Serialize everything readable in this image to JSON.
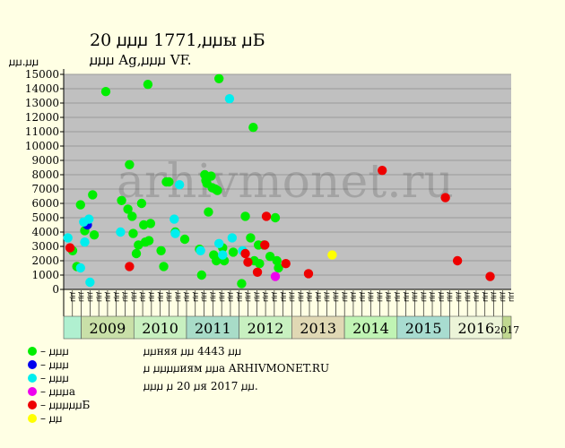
{
  "chart_data": {
    "type": "scatter",
    "title": "20 ꙡꙡꙡ 1771,ꙡꙡы ꙡБ",
    "subtitle": "ꙡꙡꙡ Ag,ꙡꙡꙡ VF.",
    "ylabel": "ꙡꙡ.ꙡꙡ",
    "ylim": [
      0,
      15000
    ],
    "yticks": [
      0,
      1000,
      2000,
      3000,
      4000,
      5000,
      6000,
      7000,
      8000,
      9000,
      10000,
      11000,
      12000,
      13000,
      14000,
      15000
    ],
    "watermark": "arhivmonet.ru",
    "x_slot_labels": [
      "ꙡꙡ",
      "ꙡꙡ",
      "ꙡꙡ",
      "ꙡꙡ",
      "ꙡꙡ",
      "ꙡꙡ",
      "ꙡꙡ",
      "ꙡꙡ",
      "ꙡꙡ",
      "ꙡꙡ",
      "ꙡꙡ",
      "ꙡꙡ",
      "ꙡꙡ",
      "ꙡꙡ",
      "ꙡꙡ",
      "ꙡꙡ",
      "ꙡꙡ",
      "ꙡꙡ",
      "ꙡꙡ",
      "ꙡꙡ",
      "ꙡꙡ",
      "ꙡꙡ",
      "ꙡꙡ",
      "ꙡꙡ",
      "ꙡꙡ",
      "ꙡꙡ",
      "ꙡꙡ",
      "ꙡꙡ",
      "ꙡꙡ",
      "ꙡꙡ",
      "ꙡꙡ",
      "ꙡꙡ",
      "ꙡꙡ",
      "ꙡꙡ",
      "ꙡꙡ",
      "ꙡꙡ",
      "ꙡꙡ",
      "ꙡꙡ",
      "ꙡꙡ",
      "ꙡꙡ",
      "ꙡꙡ",
      "ꙡꙡ",
      "ꙡꙡ",
      "ꙡꙡ",
      "ꙡꙡ",
      "ꙡꙡ",
      "ꙡꙡ",
      "ꙡꙡ",
      "ꙡꙡ",
      "ꙡꙡ",
      "ꙡꙡ",
      "ꙡꙡ",
      "ꙡꙡ",
      "ꙡꙡ",
      "ꙡꙡ",
      "ꙡꙡ",
      "ꙡꙡ",
      "ꙡꙡ",
      "ꙡꙡ",
      "ꙡꙡ",
      "ꙡꙡ",
      "ꙡꙡ",
      "ꙡꙡ",
      "ꙡꙡ",
      "ꙡꙡ",
      "ꙡꙡ",
      "ꙡꙡ",
      "ꙡꙡ",
      "ꙡꙡ",
      "ꙡꙡ",
      "ꙡꙡ",
      "ꙡꙡ",
      "ꙡꙡ",
      "ꙡꙡ",
      "ꙡꙡ",
      "ꙡꙡ",
      "ꙡꙡ",
      "ꙡꙡ",
      "ꙡꙡ",
      "ꙡꙡ",
      "ꙡꙡ",
      "ꙡꙡ",
      "ꙡꙡ",
      "ꙡꙡ",
      "ꙡꙡ",
      "ꙡꙡ",
      "ꙡꙡ",
      "ꙡꙡ",
      "ꙡꙡ",
      "ꙡꙡ",
      "ꙡꙡ",
      "ꙡꙡ",
      "ꙡꙡ",
      "ꙡꙡ",
      "ꙡꙡ",
      "ꙡꙡ"
    ],
    "x_slot_start": 2008.5,
    "x_slot_step": 0.1667,
    "year_bands": [
      {
        "label": "",
        "from": 2008.5,
        "to": 2008.8333,
        "color": "#b0f0d0"
      },
      {
        "label": "2009",
        "from": 2008.8333,
        "to": 2009.8333,
        "color": "#c9e0a8"
      },
      {
        "label": "2010",
        "from": 2009.8333,
        "to": 2010.8333,
        "color": "#c8f0c0"
      },
      {
        "label": "2011",
        "from": 2010.8333,
        "to": 2011.8333,
        "color": "#a8dcc8"
      },
      {
        "label": "2012",
        "from": 2011.8333,
        "to": 2012.8333,
        "color": "#c8f0c0"
      },
      {
        "label": "2013",
        "from": 2012.8333,
        "to": 2013.8333,
        "color": "#e0d8b4"
      },
      {
        "label": "2014",
        "from": 2013.8333,
        "to": 2014.8333,
        "color": "#c0f4b4"
      },
      {
        "label": "2015",
        "from": 2014.8333,
        "to": 2015.8333,
        "color": "#a8dcd0"
      },
      {
        "label": "2016",
        "from": 2015.8333,
        "to": 2016.8333,
        "color": "#ecf4d8"
      },
      {
        "label": "2017",
        "from": 2016.8333,
        "to": 2017.0,
        "color": "#c0d890"
      }
    ],
    "x_range": [
      2008.5,
      2017.0
    ],
    "series": [
      {
        "name": "– ꙡꙡꙡ",
        "color": "#00ee00",
        "points": [
          [
            2008.67,
            2700
          ],
          [
            2008.75,
            1600
          ],
          [
            2008.82,
            5900
          ],
          [
            2008.9,
            4100
          ],
          [
            2009.05,
            6600
          ],
          [
            2009.08,
            3800
          ],
          [
            2009.3,
            13800
          ],
          [
            2009.6,
            6200
          ],
          [
            2009.72,
            5600
          ],
          [
            2009.75,
            8700
          ],
          [
            2009.8,
            5100
          ],
          [
            2009.82,
            3900
          ],
          [
            2009.88,
            2500
          ],
          [
            2009.92,
            3100
          ],
          [
            2009.98,
            6000
          ],
          [
            2010.02,
            4500
          ],
          [
            2010.05,
            3300
          ],
          [
            2010.1,
            14300
          ],
          [
            2010.12,
            3400
          ],
          [
            2010.15,
            4600
          ],
          [
            2010.35,
            2700
          ],
          [
            2010.4,
            1600
          ],
          [
            2010.45,
            7500
          ],
          [
            2010.5,
            7500
          ],
          [
            2010.62,
            4000
          ],
          [
            2010.8,
            3500
          ],
          [
            2011.08,
            2800
          ],
          [
            2011.12,
            1000
          ],
          [
            2011.18,
            8000
          ],
          [
            2011.2,
            7600
          ],
          [
            2011.22,
            7400
          ],
          [
            2011.25,
            5400
          ],
          [
            2011.3,
            7900
          ],
          [
            2011.32,
            7100
          ],
          [
            2011.35,
            2400
          ],
          [
            2011.38,
            7000
          ],
          [
            2011.4,
            2000
          ],
          [
            2011.42,
            6900
          ],
          [
            2011.45,
            14700
          ],
          [
            2011.52,
            2900
          ],
          [
            2011.55,
            2000
          ],
          [
            2011.72,
            2600
          ],
          [
            2011.88,
            400
          ],
          [
            2011.95,
            5100
          ],
          [
            2012.05,
            3600
          ],
          [
            2012.1,
            11300
          ],
          [
            2012.12,
            2000
          ],
          [
            2012.2,
            3100
          ],
          [
            2012.22,
            1800
          ],
          [
            2012.3,
            3100
          ],
          [
            2012.42,
            2300
          ],
          [
            2012.52,
            5000
          ],
          [
            2012.55,
            2000
          ],
          [
            2012.58,
            1500
          ]
        ]
      },
      {
        "name": "– ꙡꙡꙡ",
        "color": "#0000ee",
        "points": [
          [
            2008.95,
            4500
          ]
        ]
      },
      {
        "name": "– ꙡꙡꙡ",
        "color": "#00eeee",
        "points": [
          [
            2008.58,
            3600
          ],
          [
            2008.82,
            1500
          ],
          [
            2008.88,
            4700
          ],
          [
            2008.9,
            3300
          ],
          [
            2008.98,
            4900
          ],
          [
            2009.0,
            500
          ],
          [
            2009.58,
            4000
          ],
          [
            2010.6,
            4900
          ],
          [
            2010.62,
            3900
          ],
          [
            2010.7,
            7300
          ],
          [
            2011.1,
            2700
          ],
          [
            2011.45,
            3200
          ],
          [
            2011.52,
            2400
          ],
          [
            2011.65,
            13300
          ],
          [
            2011.7,
            3600
          ],
          [
            2011.9,
            2700
          ]
        ]
      },
      {
        "name": "– ꙡꙡꙡa",
        "color": "#ee00ee",
        "points": [
          [
            2012.52,
            900
          ]
        ]
      },
      {
        "name": "– ꙡꙡꙡꙡꙡБ",
        "color": "#ee0000",
        "points": [
          [
            2008.62,
            2900
          ],
          [
            2009.75,
            1600
          ],
          [
            2011.95,
            2500
          ],
          [
            2012.0,
            1900
          ],
          [
            2012.18,
            1200
          ],
          [
            2012.32,
            3100
          ],
          [
            2012.35,
            5100
          ],
          [
            2012.72,
            1800
          ],
          [
            2013.15,
            1100
          ],
          [
            2014.55,
            8300
          ],
          [
            2015.75,
            6400
          ],
          [
            2015.98,
            2000
          ],
          [
            2016.6,
            900
          ]
        ]
      },
      {
        "name": "– ꙡꙡ",
        "color": "#ffff00",
        "points": [
          [
            2013.6,
            2400
          ]
        ]
      }
    ]
  },
  "info": {
    "line1": "ꙡꙡняя ꙡꙡ 4443 ꙡꙡ",
    "line2": "ꙡ ꙡꙡꙡꙡиям ꙡꙡa ARHIVMONET.RU",
    "line3": "ꙡꙡꙡ ꙡ 20 ꙡя 2017 ꙡꙡ."
  }
}
